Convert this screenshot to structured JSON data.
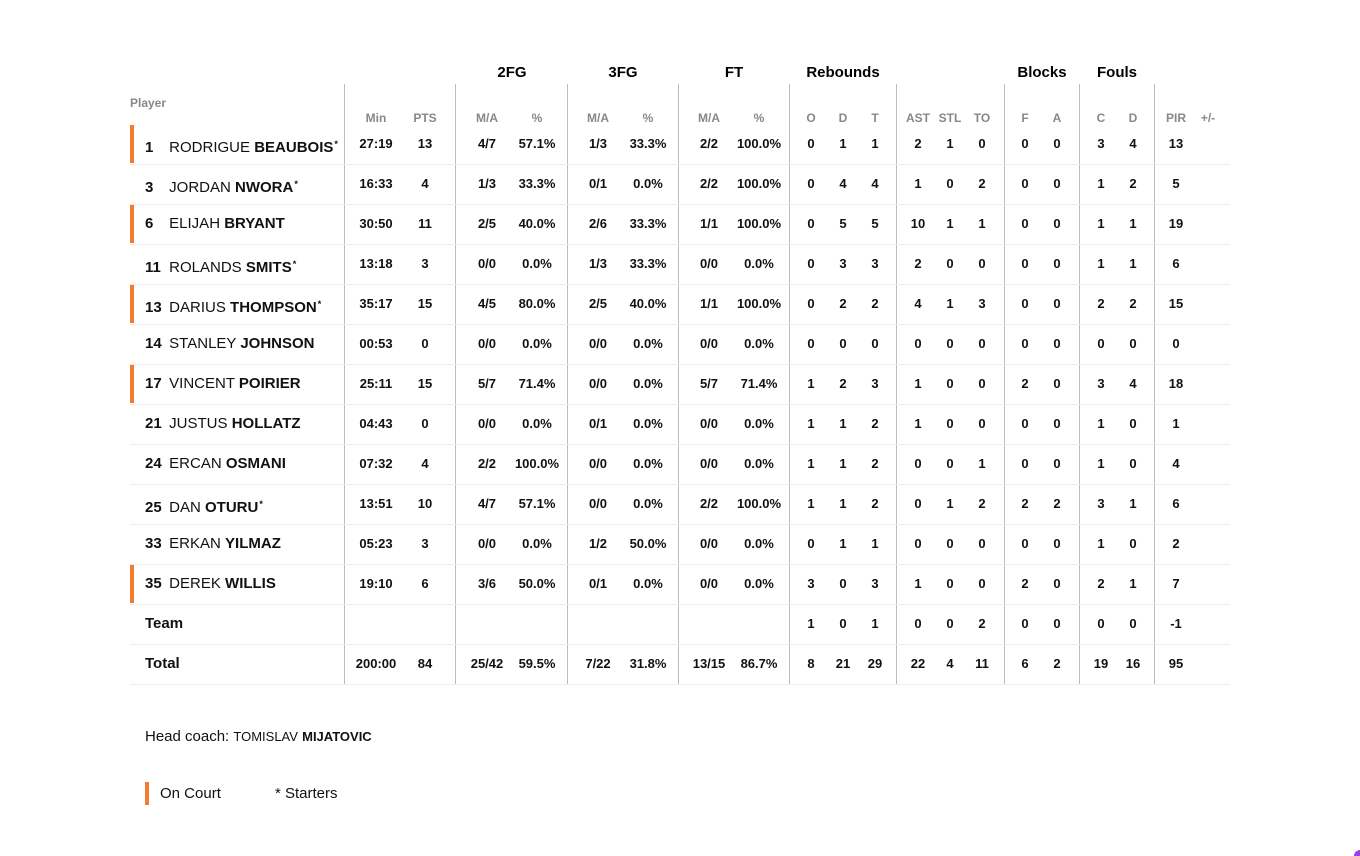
{
  "groups": [
    "2FG",
    "3FG",
    "FT",
    "Rebounds",
    "Blocks",
    "Fouls"
  ],
  "player_label": "Player",
  "columns": [
    "Min",
    "PTS",
    "M/A",
    "%",
    "M/A",
    "%",
    "M/A",
    "%",
    "O",
    "D",
    "T",
    "AST",
    "STL",
    "TO",
    "F",
    "A",
    "C",
    "D",
    "PIR",
    "+/-"
  ],
  "players": [
    {
      "number": "1",
      "first": "RODRIGUE",
      "last": "BEAUBOIS",
      "starter": true,
      "on_court": true,
      "stats": [
        "27:19",
        "13",
        "4/7",
        "57.1%",
        "1/3",
        "33.3%",
        "2/2",
        "100.0%",
        "0",
        "1",
        "1",
        "2",
        "1",
        "0",
        "0",
        "0",
        "3",
        "4",
        "13",
        ""
      ]
    },
    {
      "number": "3",
      "first": "JORDAN",
      "last": "NWORA",
      "starter": true,
      "on_court": false,
      "stats": [
        "16:33",
        "4",
        "1/3",
        "33.3%",
        "0/1",
        "0.0%",
        "2/2",
        "100.0%",
        "0",
        "4",
        "4",
        "1",
        "0",
        "2",
        "0",
        "0",
        "1",
        "2",
        "5",
        ""
      ]
    },
    {
      "number": "6",
      "first": "ELIJAH",
      "last": "BRYANT",
      "starter": false,
      "on_court": true,
      "stats": [
        "30:50",
        "11",
        "2/5",
        "40.0%",
        "2/6",
        "33.3%",
        "1/1",
        "100.0%",
        "0",
        "5",
        "5",
        "10",
        "1",
        "1",
        "0",
        "0",
        "1",
        "1",
        "19",
        ""
      ]
    },
    {
      "number": "11",
      "first": "ROLANDS",
      "last": "SMITS",
      "starter": true,
      "on_court": false,
      "stats": [
        "13:18",
        "3",
        "0/0",
        "0.0%",
        "1/3",
        "33.3%",
        "0/0",
        "0.0%",
        "0",
        "3",
        "3",
        "2",
        "0",
        "0",
        "0",
        "0",
        "1",
        "1",
        "6",
        ""
      ]
    },
    {
      "number": "13",
      "first": "DARIUS",
      "last": "THOMPSON",
      "starter": true,
      "on_court": true,
      "stats": [
        "35:17",
        "15",
        "4/5",
        "80.0%",
        "2/5",
        "40.0%",
        "1/1",
        "100.0%",
        "0",
        "2",
        "2",
        "4",
        "1",
        "3",
        "0",
        "0",
        "2",
        "2",
        "15",
        ""
      ]
    },
    {
      "number": "14",
      "first": "STANLEY",
      "last": "JOHNSON",
      "starter": false,
      "on_court": false,
      "stats": [
        "00:53",
        "0",
        "0/0",
        "0.0%",
        "0/0",
        "0.0%",
        "0/0",
        "0.0%",
        "0",
        "0",
        "0",
        "0",
        "0",
        "0",
        "0",
        "0",
        "0",
        "0",
        "0",
        ""
      ]
    },
    {
      "number": "17",
      "first": "VINCENT",
      "last": "POIRIER",
      "starter": false,
      "on_court": true,
      "stats": [
        "25:11",
        "15",
        "5/7",
        "71.4%",
        "0/0",
        "0.0%",
        "5/7",
        "71.4%",
        "1",
        "2",
        "3",
        "1",
        "0",
        "0",
        "2",
        "0",
        "3",
        "4",
        "18",
        ""
      ]
    },
    {
      "number": "21",
      "first": "JUSTUS",
      "last": "HOLLATZ",
      "starter": false,
      "on_court": false,
      "stats": [
        "04:43",
        "0",
        "0/0",
        "0.0%",
        "0/1",
        "0.0%",
        "0/0",
        "0.0%",
        "1",
        "1",
        "2",
        "1",
        "0",
        "0",
        "0",
        "0",
        "1",
        "0",
        "1",
        ""
      ]
    },
    {
      "number": "24",
      "first": "ERCAN",
      "last": "OSMANI",
      "starter": false,
      "on_court": false,
      "stats": [
        "07:32",
        "4",
        "2/2",
        "100.0%",
        "0/0",
        "0.0%",
        "0/0",
        "0.0%",
        "1",
        "1",
        "2",
        "0",
        "0",
        "1",
        "0",
        "0",
        "1",
        "0",
        "4",
        ""
      ]
    },
    {
      "number": "25",
      "first": "DAN",
      "last": "OTURU",
      "starter": true,
      "on_court": false,
      "stats": [
        "13:51",
        "10",
        "4/7",
        "57.1%",
        "0/0",
        "0.0%",
        "2/2",
        "100.0%",
        "1",
        "1",
        "2",
        "0",
        "1",
        "2",
        "2",
        "2",
        "3",
        "1",
        "6",
        ""
      ]
    },
    {
      "number": "33",
      "first": "ERKAN",
      "last": "YILMAZ",
      "starter": false,
      "on_court": false,
      "stats": [
        "05:23",
        "3",
        "0/0",
        "0.0%",
        "1/2",
        "50.0%",
        "0/0",
        "0.0%",
        "0",
        "1",
        "1",
        "0",
        "0",
        "0",
        "0",
        "0",
        "1",
        "0",
        "2",
        ""
      ]
    },
    {
      "number": "35",
      "first": "DEREK",
      "last": "WILLIS",
      "starter": false,
      "on_court": true,
      "stats": [
        "19:10",
        "6",
        "3/6",
        "50.0%",
        "0/1",
        "0.0%",
        "0/0",
        "0.0%",
        "3",
        "0",
        "3",
        "1",
        "0",
        "0",
        "2",
        "0",
        "2",
        "1",
        "7",
        ""
      ]
    }
  ],
  "team_row": {
    "label": "Team",
    "stats": [
      "",
      "",
      "",
      "",
      "",
      "",
      "",
      "",
      "1",
      "0",
      "1",
      "0",
      "0",
      "2",
      "0",
      "0",
      "0",
      "0",
      "-1",
      ""
    ]
  },
  "total_row": {
    "label": "Total",
    "stats": [
      "200:00",
      "84",
      "25/42",
      "59.5%",
      "7/22",
      "31.8%",
      "13/15",
      "86.7%",
      "8",
      "21",
      "29",
      "22",
      "4",
      "11",
      "6",
      "2",
      "19",
      "16",
      "95",
      ""
    ]
  },
  "coach": {
    "label": "Head coach: ",
    "first": "TOMISLAV",
    "last": "MIJATOVIC"
  },
  "legend": {
    "on_court": "On Court",
    "starters": "* Starters"
  },
  "colors": {
    "on_court": "#f47b30",
    "divider": "#bdbdbd",
    "header_text": "#888888"
  }
}
